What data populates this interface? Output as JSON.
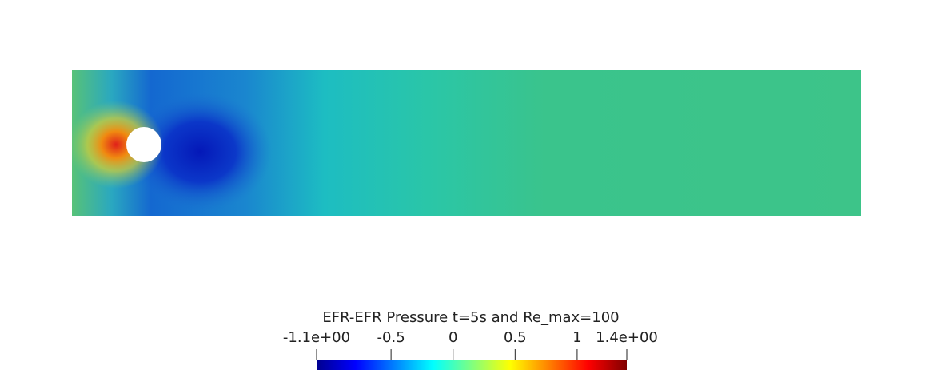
{
  "title": "EFR-EFR Pressure t=5s and Re_max=100",
  "colorbar": {
    "range": [
      -1.1,
      1.4
    ],
    "ticks": [
      {
        "value": -1.1,
        "label": "-1.1e+00"
      },
      -0.5,
      0,
      0.5,
      1,
      {
        "value": 1.4,
        "label": "1.4e+00"
      }
    ]
  }
}
